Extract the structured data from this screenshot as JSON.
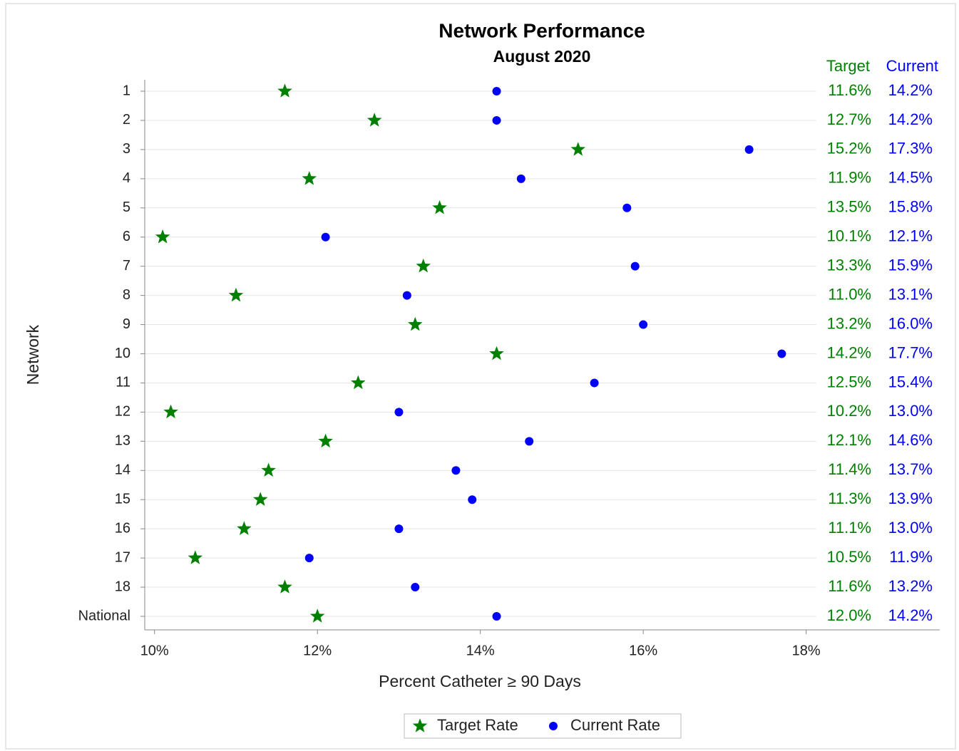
{
  "chart_data": {
    "type": "dot",
    "title": "Network Performance",
    "subtitle": "August 2020",
    "x_label": "Percent Catheter ≥ 90 Days",
    "y_label": "Network",
    "categories": [
      "1",
      "2",
      "3",
      "4",
      "5",
      "6",
      "7",
      "8",
      "9",
      "10",
      "11",
      "12",
      "13",
      "14",
      "15",
      "16",
      "17",
      "18",
      "National"
    ],
    "series": [
      {
        "name": "Target Rate",
        "color": "#008000",
        "marker": "star",
        "label_header": "Target",
        "values": [
          11.6,
          12.7,
          15.2,
          11.9,
          13.5,
          10.1,
          13.3,
          11.0,
          13.2,
          14.2,
          12.5,
          10.2,
          12.1,
          11.4,
          11.3,
          11.1,
          10.5,
          11.6,
          12.0
        ],
        "value_labels": [
          "11.6%",
          "12.7%",
          "15.2%",
          "11.9%",
          "13.5%",
          "10.1%",
          "13.3%",
          "11.0%",
          "13.2%",
          "14.2%",
          "12.5%",
          "10.2%",
          "12.1%",
          "11.4%",
          "11.3%",
          "11.1%",
          "10.5%",
          "11.6%",
          "12.0%"
        ]
      },
      {
        "name": "Current Rate",
        "color": "#0000ff",
        "marker": "circle",
        "label_header": "Current",
        "values": [
          14.2,
          14.2,
          17.3,
          14.5,
          15.8,
          12.1,
          15.9,
          13.1,
          16.0,
          17.7,
          15.4,
          13.0,
          14.6,
          13.7,
          13.9,
          13.0,
          11.9,
          13.2,
          14.2
        ],
        "value_labels": [
          "14.2%",
          "14.2%",
          "17.3%",
          "14.5%",
          "15.8%",
          "12.1%",
          "15.9%",
          "13.1%",
          "16.0%",
          "17.7%",
          "15.4%",
          "13.0%",
          "14.6%",
          "13.7%",
          "13.9%",
          "13.0%",
          "11.9%",
          "13.2%",
          "14.2%"
        ]
      }
    ],
    "xlim": [
      9.88,
      19.64
    ],
    "xticks": [
      {
        "value": 10,
        "label": "10%"
      },
      {
        "value": 12,
        "label": "12%"
      },
      {
        "value": 14,
        "label": "14%"
      },
      {
        "value": 16,
        "label": "16%"
      },
      {
        "value": 18,
        "label": "18%"
      }
    ],
    "grid": true,
    "legend": "bottom"
  }
}
